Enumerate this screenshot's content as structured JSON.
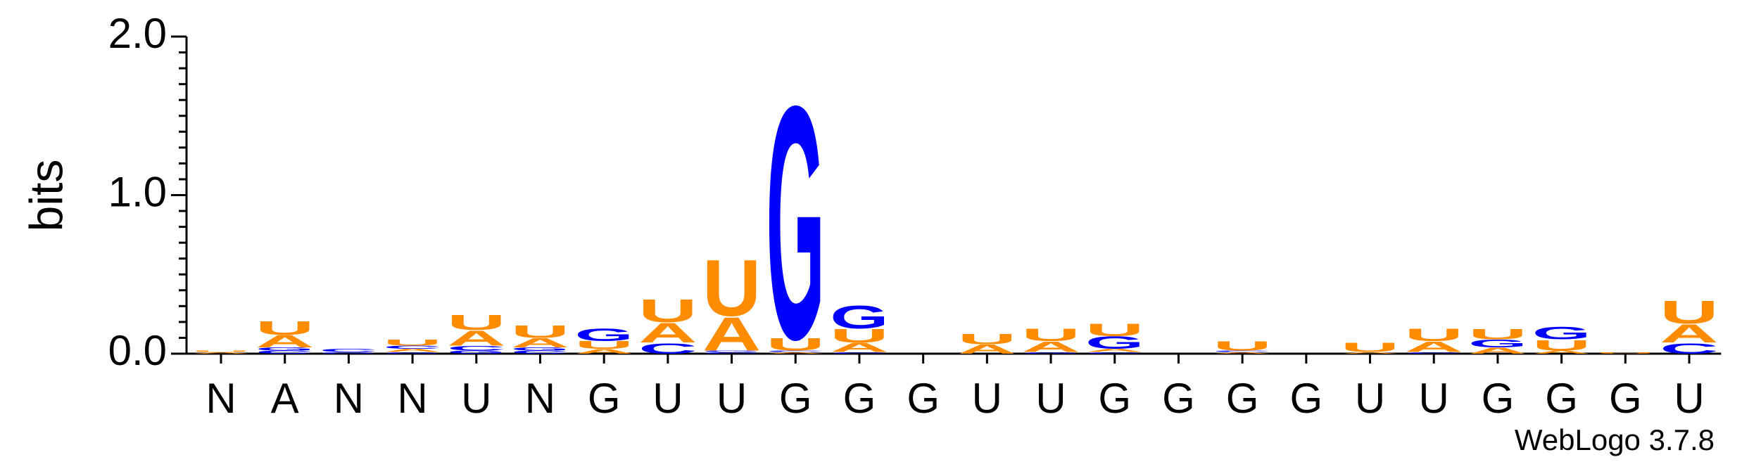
{
  "chart_data": {
    "type": "logo",
    "ylabel": "bits",
    "footer": "WebLogo 3.7.8",
    "categories": [
      "N",
      "A",
      "N",
      "N",
      "U",
      "N",
      "G",
      "U",
      "U",
      "G",
      "G",
      "G",
      "U",
      "U",
      "G",
      "G",
      "G",
      "G",
      "U",
      "U",
      "G",
      "G",
      "G",
      "U"
    ],
    "series": [
      {
        "name": "A",
        "color": "#ff8c00",
        "values": [
          0.01,
          0.08,
          0,
          0.02,
          0.1,
          0.06,
          0.03,
          0.13,
          0.22,
          0.01,
          0.06,
          0,
          0.06,
          0.07,
          0.02,
          0,
          0.01,
          0,
          0.01,
          0.07,
          0.04,
          0.02,
          0,
          0.12
        ]
      },
      {
        "name": "C",
        "color": "#0000ff",
        "values": [
          0,
          0.02,
          0.02,
          0.02,
          0.03,
          0.02,
          0,
          0.07,
          0.01,
          0.01,
          0.01,
          0,
          0,
          0,
          0.01,
          0,
          0.01,
          0,
          0,
          0.01,
          0,
          0,
          0,
          0.07
        ]
      },
      {
        "name": "G",
        "color": "#0000ff",
        "values": [
          0,
          0.02,
          0.01,
          0.01,
          0.02,
          0.02,
          0.08,
          0,
          0.01,
          1.53,
          0.15,
          0,
          0,
          0.01,
          0.08,
          0,
          0,
          0,
          0,
          0,
          0.05,
          0.08,
          0,
          0
        ]
      },
      {
        "name": "U",
        "color": "#ff8c00",
        "values": [
          0.01,
          0.09,
          0,
          0.04,
          0.1,
          0.08,
          0.05,
          0.15,
          0.37,
          0.08,
          0.09,
          0,
          0.07,
          0.08,
          0.08,
          0,
          0.06,
          0,
          0.06,
          0.08,
          0.07,
          0.07,
          0.01,
          0.15
        ]
      }
    ],
    "ylim": [
      0,
      2
    ],
    "yticks": [
      {
        "value": 0,
        "label": "0.0"
      },
      {
        "value": 1,
        "label": "1.0"
      },
      {
        "value": 2,
        "label": "2.0"
      }
    ],
    "yticks_minor": [
      0.1,
      0.2,
      0.3,
      0.4,
      0.5,
      0.6,
      0.7,
      0.8,
      0.9,
      1.1,
      1.2,
      1.3,
      1.4,
      1.5,
      1.6,
      1.7,
      1.8,
      1.9
    ]
  }
}
